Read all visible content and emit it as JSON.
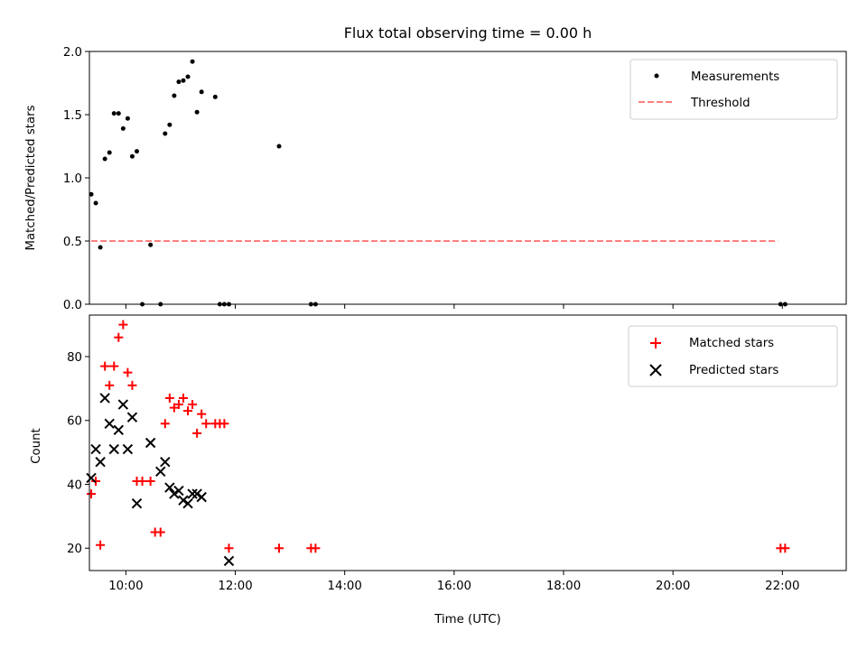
{
  "colors": {
    "measurements": "#000000",
    "threshold": "#ff7f7f",
    "matched": "#ff0000",
    "predicted": "#000000"
  },
  "chart_data": [
    {
      "type": "scatter",
      "title": "Flux total observing time = 0.00 h",
      "ylabel": "Matched/Predicted stars",
      "xlabel": "",
      "ylim": [
        0,
        2.0
      ],
      "xlim": [
        "09:20",
        "23:10"
      ],
      "yticks": [
        "0.0",
        "0.5",
        "1.0",
        "1.5",
        "2.0"
      ],
      "legend": {
        "placement": "top-right",
        "entries": [
          "Measurements",
          "Threshold"
        ]
      },
      "threshold": {
        "name": "Threshold",
        "value": 0.5,
        "x_range": [
          "09:22",
          "21:55"
        ]
      },
      "series": [
        {
          "name": "Measurements",
          "x": [
            "09:22",
            "09:27",
            "09:32",
            "09:37",
            "09:42",
            "09:47",
            "09:52",
            "09:57",
            "10:02",
            "10:07",
            "10:12",
            "10:18",
            "10:27",
            "10:38",
            "10:43",
            "10:48",
            "10:53",
            "10:58",
            "11:03",
            "11:08",
            "11:13",
            "11:18",
            "11:23",
            "11:38",
            "11:43",
            "11:48",
            "11:53",
            "12:48",
            "13:23",
            "13:28",
            "21:58",
            "22:03"
          ],
          "y": [
            0.87,
            0.8,
            0.45,
            1.15,
            1.2,
            1.51,
            1.51,
            1.39,
            1.47,
            1.17,
            1.21,
            0.0,
            0.47,
            0.0,
            1.35,
            1.42,
            1.65,
            1.76,
            1.77,
            1.8,
            1.92,
            1.52,
            1.68,
            1.64,
            0.0,
            0.0,
            0.0,
            1.25,
            0.0,
            0.0,
            0.0,
            0.0
          ]
        }
      ]
    },
    {
      "type": "scatter",
      "title": "",
      "xlabel": "Time (UTC)",
      "ylabel": "Count",
      "ylim": [
        13,
        93
      ],
      "xticks": [
        "10:00",
        "12:00",
        "14:00",
        "16:00",
        "18:00",
        "20:00",
        "22:00"
      ],
      "yticks": [
        "20",
        "40",
        "60",
        "80"
      ],
      "legend": {
        "placement": "top-right",
        "entries": [
          "Matched stars",
          "Predicted stars"
        ]
      },
      "series": [
        {
          "name": "Matched stars",
          "x": [
            "09:22",
            "09:27",
            "09:32",
            "09:37",
            "09:42",
            "09:47",
            "09:52",
            "09:57",
            "10:02",
            "10:07",
            "10:12",
            "10:18",
            "10:27",
            "10:32",
            "10:38",
            "10:43",
            "10:48",
            "10:53",
            "10:58",
            "11:03",
            "11:08",
            "11:13",
            "11:18",
            "11:23",
            "11:28",
            "11:38",
            "11:43",
            "11:48",
            "11:53",
            "12:48",
            "13:23",
            "13:28",
            "21:58",
            "22:03"
          ],
          "y": [
            37,
            41,
            21,
            77,
            71,
            77,
            86,
            90,
            75,
            71,
            41,
            41,
            41,
            25,
            25,
            59,
            67,
            64,
            65,
            67,
            63,
            65,
            56,
            62,
            59,
            59,
            59,
            59,
            20,
            20,
            20,
            20,
            20,
            20
          ]
        },
        {
          "name": "Predicted stars",
          "x": [
            "09:22",
            "09:27",
            "09:32",
            "09:37",
            "09:42",
            "09:47",
            "09:52",
            "09:57",
            "10:02",
            "10:07",
            "10:12",
            "10:27",
            "10:38",
            "10:43",
            "10:48",
            "10:53",
            "10:58",
            "11:03",
            "11:08",
            "11:13",
            "11:18",
            "11:23",
            "11:53"
          ],
          "y": [
            42,
            51,
            47,
            67,
            59,
            51,
            57,
            65,
            51,
            61,
            34,
            53,
            44,
            47,
            39,
            37,
            38,
            35,
            34,
            37,
            37,
            36,
            16
          ]
        }
      ]
    }
  ]
}
